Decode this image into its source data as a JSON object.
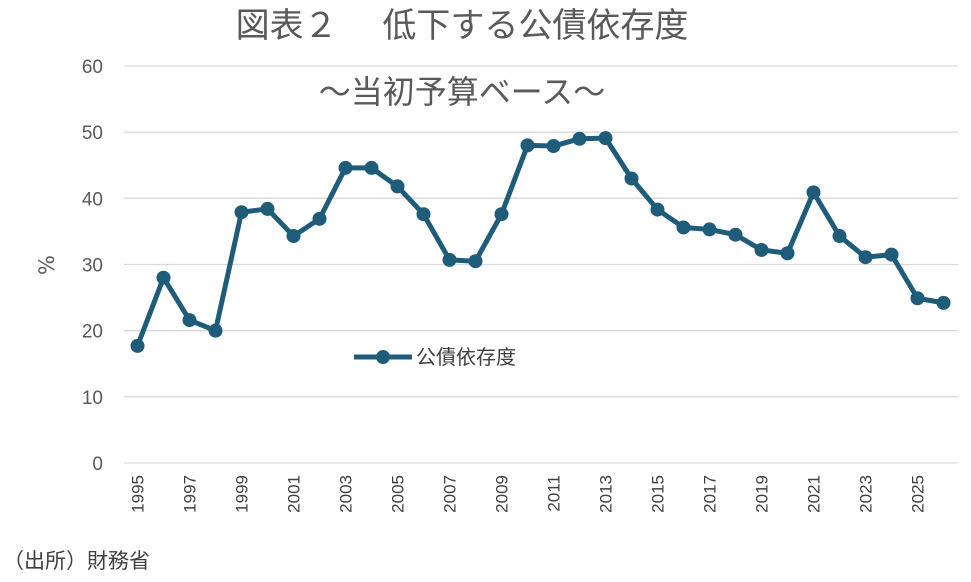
{
  "chart_data": {
    "type": "line",
    "title": "図表２　 低下する公債依存度",
    "subtitle": "～当初予算ベース～",
    "xlabel": "",
    "ylabel": "%",
    "ylim": [
      0,
      60
    ],
    "yticks": [
      0,
      10,
      20,
      30,
      40,
      50,
      60
    ],
    "xtick_labels": [
      "1995",
      "1997",
      "1999",
      "2001",
      "2003",
      "2005",
      "2007",
      "2009",
      "2011",
      "2013",
      "2015",
      "2017",
      "2019",
      "2021",
      "2023",
      "2025"
    ],
    "x": [
      1995,
      1996,
      1997,
      1998,
      1999,
      2000,
      2001,
      2002,
      2003,
      2004,
      2005,
      2006,
      2007,
      2008,
      2009,
      2010,
      2011,
      2012,
      2013,
      2014,
      2015,
      2016,
      2017,
      2018,
      2019,
      2020,
      2021,
      2022,
      2023,
      2024,
      2025,
      2026
    ],
    "series": [
      {
        "name": "公債依存度",
        "color": "#1f5c7a",
        "values": [
          17.7,
          28.0,
          21.6,
          20.0,
          37.9,
          38.4,
          34.3,
          36.9,
          44.6,
          44.6,
          41.8,
          37.6,
          30.7,
          30.5,
          37.6,
          48.0,
          47.9,
          49.0,
          49.1,
          43.0,
          38.3,
          35.6,
          35.3,
          34.5,
          32.2,
          31.7,
          40.9,
          34.3,
          31.1,
          31.5,
          24.9,
          24.2
        ]
      }
    ],
    "grid": true,
    "legend_position": "center"
  },
  "source_note": "（出所）財務省"
}
